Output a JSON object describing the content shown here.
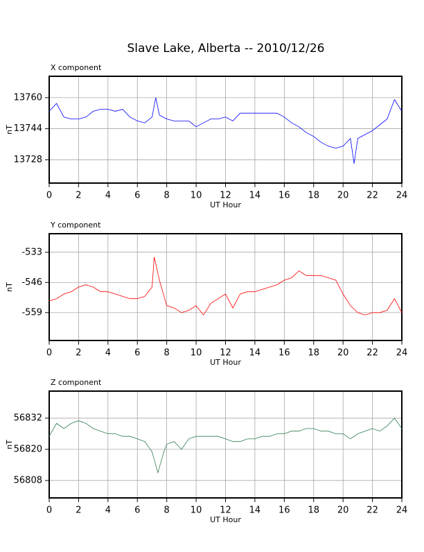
{
  "title": "Slave Lake, Alberta -- 2010/12/26",
  "chart_data": [
    {
      "type": "line",
      "title": "X component",
      "xlabel": "UT Hour",
      "ylabel": "nT",
      "grid": true,
      "xlim": [
        0,
        24
      ],
      "xticks": [
        0,
        2,
        4,
        6,
        8,
        10,
        12,
        14,
        16,
        18,
        20,
        22,
        24
      ],
      "ylim": [
        13716,
        13771
      ],
      "yticks": [
        13728,
        13744,
        13760
      ],
      "x": [
        0,
        0.5,
        1,
        1.5,
        2,
        2.5,
        3,
        3.5,
        4,
        4.5,
        5,
        5.5,
        6,
        6.5,
        7,
        7.25,
        7.5,
        8,
        8.5,
        9,
        9.5,
        10,
        10.5,
        11,
        11.5,
        12,
        12.5,
        13,
        13.5,
        14,
        14.5,
        15,
        15.5,
        16,
        16.5,
        17,
        17.5,
        18,
        18.5,
        19,
        19.5,
        20,
        20.5,
        20.75,
        21,
        21.5,
        22,
        22.5,
        23,
        23.5,
        24
      ],
      "series": [
        {
          "name": "X",
          "color": "#0000ff",
          "values": [
            13753,
            13757,
            13750,
            13749,
            13749,
            13750,
            13753,
            13754,
            13754,
            13753,
            13754,
            13750,
            13748,
            13747,
            13750,
            13760,
            13751,
            13749,
            13748,
            13748,
            13748,
            13745,
            13747,
            13749,
            13749,
            13750,
            13748,
            13752,
            13752,
            13752,
            13752,
            13752,
            13752,
            13750,
            13747,
            13745,
            13742,
            13740,
            13737,
            13735,
            13734,
            13735,
            13739,
            13726,
            13739,
            13741,
            13743,
            13746,
            13749,
            13759,
            13753
          ]
        }
      ]
    },
    {
      "type": "line",
      "title": "Y component",
      "xlabel": "UT Hour",
      "ylabel": "nT",
      "grid": true,
      "xlim": [
        0,
        24
      ],
      "xticks": [
        0,
        2,
        4,
        6,
        8,
        10,
        12,
        14,
        16,
        18,
        20,
        22,
        24
      ],
      "ylim": [
        -571,
        -525
      ],
      "yticks": [
        -559,
        -546,
        -533
      ],
      "x": [
        0,
        0.5,
        1,
        1.5,
        2,
        2.5,
        3,
        3.5,
        4,
        4.5,
        5,
        5.5,
        6,
        6.5,
        7,
        7.15,
        7.5,
        8,
        8.5,
        9,
        9.5,
        10,
        10.5,
        11,
        11.5,
        12,
        12.5,
        13,
        13.5,
        14,
        14.5,
        15,
        15.5,
        16,
        16.5,
        17,
        17.5,
        18,
        18.5,
        19,
        19.5,
        20,
        20.5,
        21,
        21.5,
        22,
        22.5,
        23,
        23.5,
        24
      ],
      "series": [
        {
          "name": "Y",
          "color": "#ff0000",
          "values": [
            -554,
            -553,
            -551,
            -550,
            -548,
            -547,
            -548,
            -550,
            -550,
            -551,
            -552,
            -553,
            -553,
            -552,
            -548,
            -535,
            -545,
            -556,
            -557,
            -559,
            -558,
            -556,
            -560,
            -555,
            -553,
            -551,
            -557,
            -551,
            -550,
            -550,
            -549,
            -548,
            -547,
            -545,
            -544,
            -541,
            -543,
            -543,
            -543,
            -544,
            -545,
            -551,
            -556,
            -559,
            -560,
            -559,
            -559,
            -558,
            -553,
            -559
          ]
        }
      ]
    },
    {
      "type": "line",
      "title": "Z component",
      "xlabel": "UT Hour",
      "ylabel": "nT",
      "grid": true,
      "xlim": [
        0,
        24
      ],
      "xticks": [
        0,
        2,
        4,
        6,
        8,
        10,
        12,
        14,
        16,
        18,
        20,
        22,
        24
      ],
      "ylim": [
        56801.3,
        56842.4
      ],
      "yticks": [
        56808,
        56820,
        56832
      ],
      "x": [
        0,
        0.5,
        1,
        1.5,
        2,
        2.5,
        3,
        3.5,
        4,
        4.5,
        5,
        5.5,
        6,
        6.5,
        7,
        7.4,
        7.8,
        8,
        8.5,
        9,
        9.5,
        10,
        10.5,
        11,
        11.5,
        12,
        12.5,
        13,
        13.5,
        14,
        14.5,
        15,
        15.5,
        16,
        16.5,
        17,
        17.5,
        18,
        18.5,
        19,
        19.5,
        20,
        20.5,
        21,
        21.5,
        22,
        22.5,
        23,
        23.5,
        24
      ],
      "series": [
        {
          "name": "Z",
          "color": "#2e7d4f",
          "values": [
            56825,
            56830,
            56828,
            56830,
            56831,
            56830,
            56828,
            56827,
            56826,
            56826,
            56825,
            56825,
            56824,
            56823,
            56819,
            56811,
            56819,
            56822,
            56823,
            56820,
            56824,
            56825,
            56825,
            56825,
            56825,
            56824,
            56823,
            56823,
            56824,
            56824,
            56825,
            56825,
            56826,
            56826,
            56827,
            56827,
            56828,
            56828,
            56827,
            56827,
            56826,
            56826,
            56824,
            56826,
            56827,
            56828,
            56827,
            56829,
            56832,
            56828
          ]
        }
      ]
    }
  ]
}
